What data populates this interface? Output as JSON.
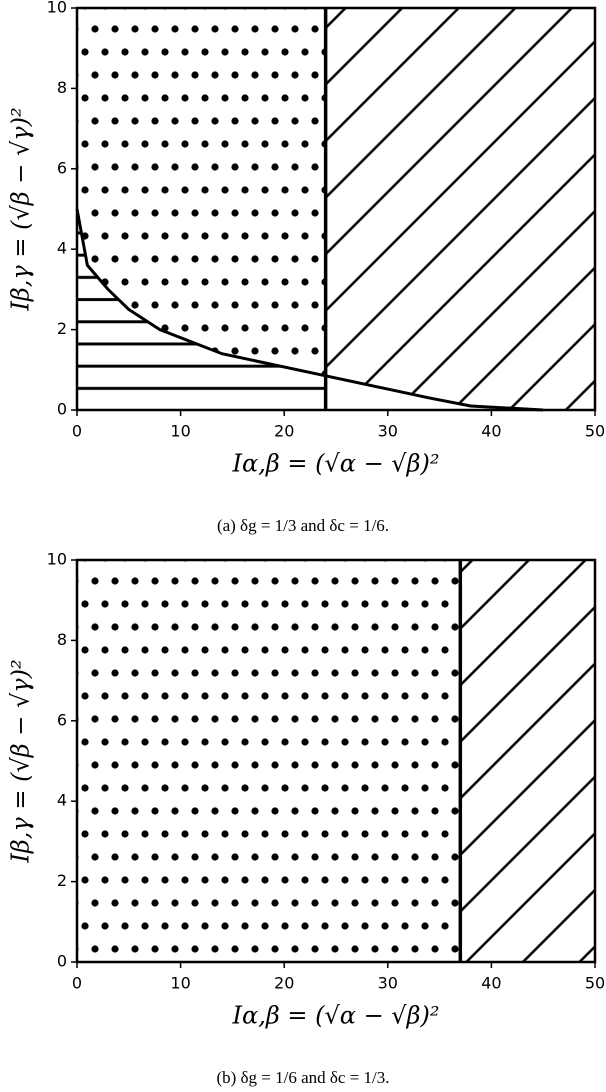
{
  "chart_data": [
    {
      "type": "region",
      "xlabel": "Iα,β = (√α − √β)²",
      "ylabel": "Iβ,γ = (√β − √γ)²",
      "caption": "(a) δg = 1/3 and δc = 1/6.",
      "xlim": [
        0,
        50
      ],
      "ylim": [
        0,
        10
      ],
      "xticks": [
        0,
        10,
        20,
        30,
        40,
        50
      ],
      "yticks": [
        0,
        2,
        4,
        6,
        8,
        10
      ],
      "boundary": 24,
      "curve": {
        "x": [
          0,
          1,
          3,
          5,
          8,
          14,
          24,
          34,
          38,
          45
        ],
        "y": [
          5,
          3.6,
          3,
          2.5,
          2,
          1.4,
          0.85,
          0.3,
          0.1,
          0
        ]
      }
    },
    {
      "type": "region",
      "xlabel": "Iα,β = (√α − √β)²",
      "ylabel": "Iβ,γ = (√β − √γ)²",
      "caption": "(b) δg = 1/6 and δc = 1/3.",
      "xlim": [
        0,
        50
      ],
      "ylim": [
        0,
        10
      ],
      "xticks": [
        0,
        10,
        20,
        30,
        40,
        50
      ],
      "yticks": [
        0,
        2,
        4,
        6,
        8,
        10
      ],
      "boundary": 37
    }
  ]
}
